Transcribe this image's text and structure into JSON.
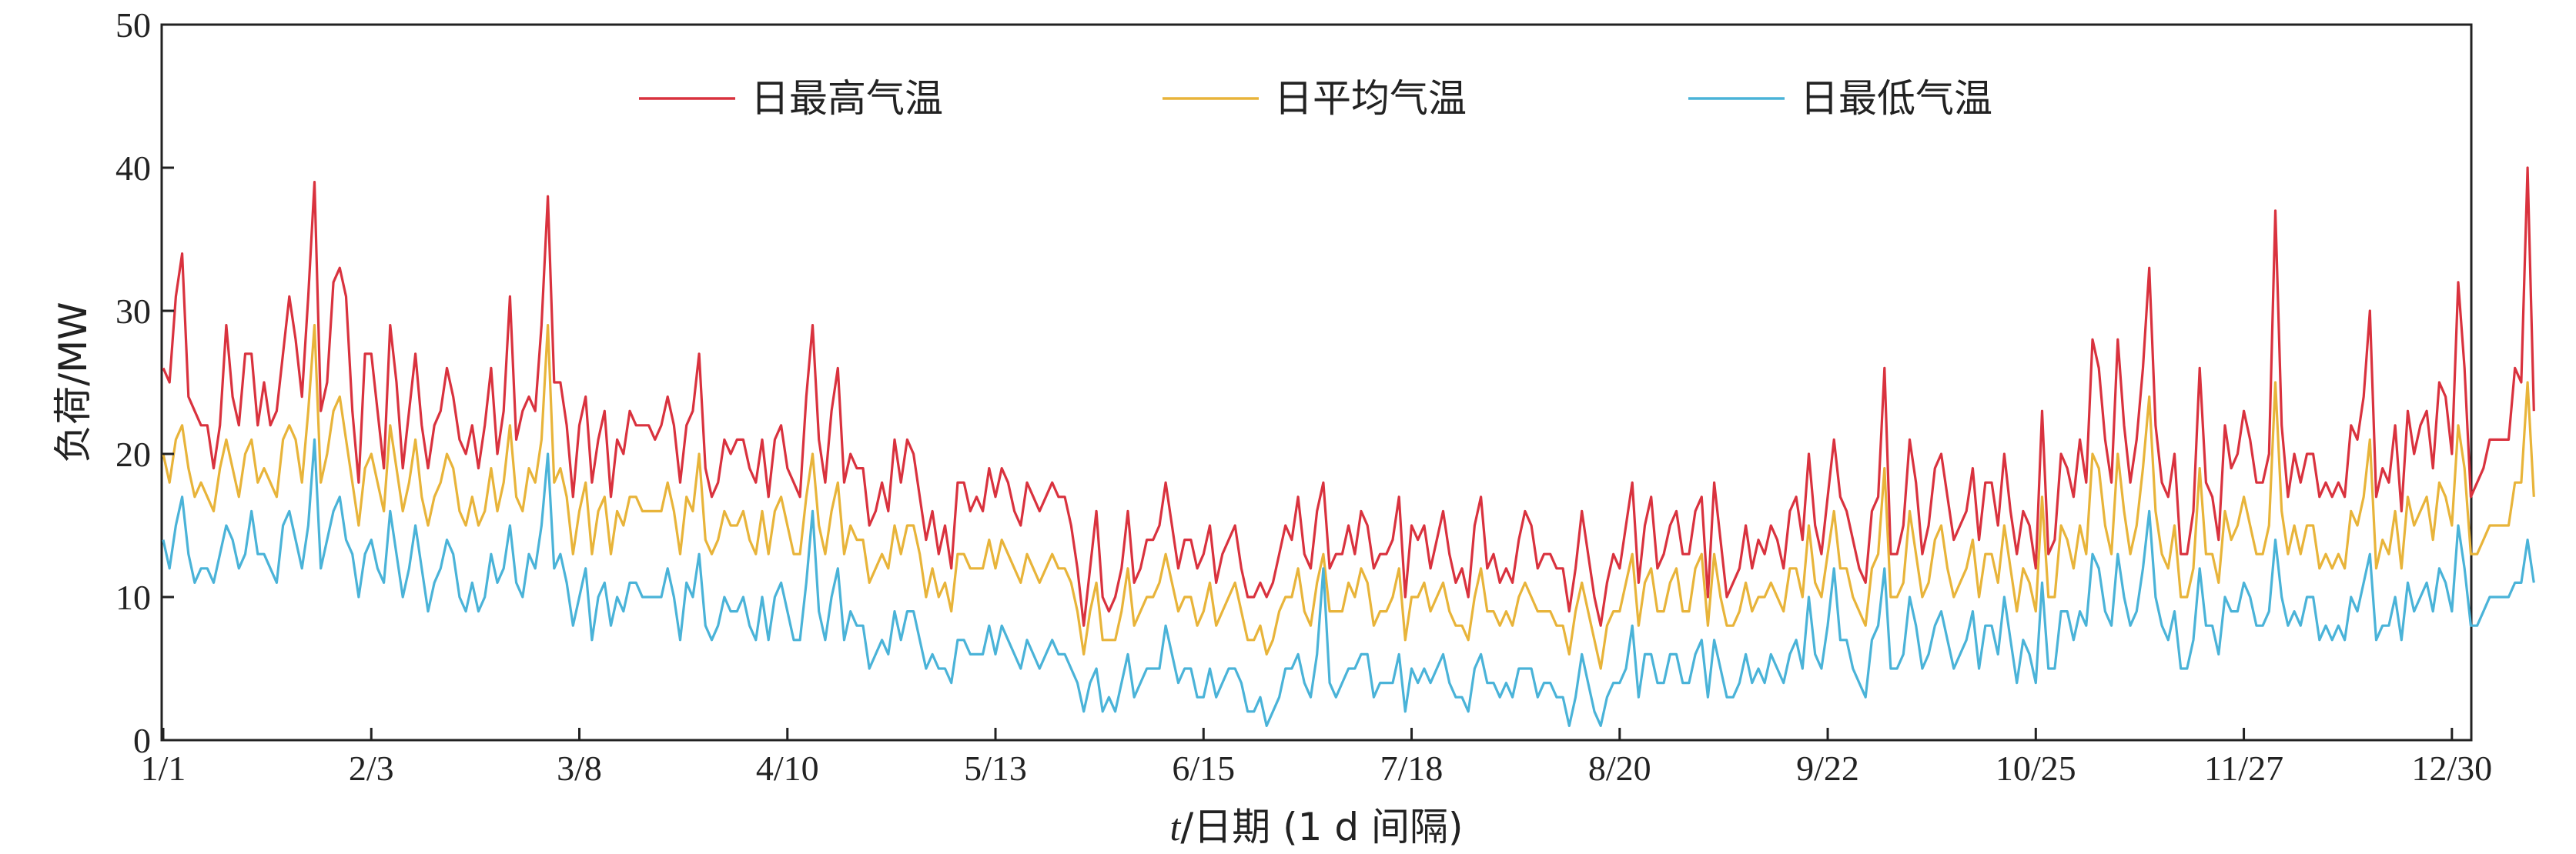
{
  "chart_data": {
    "type": "line",
    "title": "",
    "xlabel_italic": "t",
    "xlabel_rest": "/日期 (1 d 间隔)",
    "ylabel": "负荷/MW",
    "ylim": [
      0,
      50
    ],
    "yticks": [
      0,
      10,
      20,
      30,
      40,
      50
    ],
    "ytick_labels": [
      "0",
      "10",
      "20",
      "30",
      "40",
      "50"
    ],
    "x_range_days": [
      1,
      365
    ],
    "xticks": [
      {
        "day": 1,
        "label": "1/1"
      },
      {
        "day": 34,
        "label": "2/3"
      },
      {
        "day": 67,
        "label": "3/8"
      },
      {
        "day": 100,
        "label": "4/10"
      },
      {
        "day": 133,
        "label": "5/13"
      },
      {
        "day": 166,
        "label": "6/15"
      },
      {
        "day": 199,
        "label": "7/18"
      },
      {
        "day": 232,
        "label": "8/20"
      },
      {
        "day": 265,
        "label": "9/22"
      },
      {
        "day": 298,
        "label": "10/25"
      },
      {
        "day": 331,
        "label": "11/27"
      },
      {
        "day": 364,
        "label": "12/30"
      }
    ],
    "legend_position": "top-center",
    "grid": false,
    "series": [
      {
        "name": "日最高气温",
        "color": "#d9323e",
        "values": [
          26,
          25,
          31,
          34,
          24,
          23,
          22,
          22,
          19,
          22,
          29,
          24,
          22,
          27,
          27,
          22,
          25,
          22,
          23,
          27,
          31,
          28,
          24,
          31,
          39,
          23,
          25,
          32,
          33,
          31,
          23,
          18,
          27,
          27,
          23,
          19,
          29,
          25,
          19,
          23,
          27,
          22,
          19,
          22,
          23,
          26,
          24,
          21,
          20,
          22,
          19,
          22,
          26,
          20,
          23,
          31,
          21,
          23,
          24,
          23,
          29,
          38,
          25,
          25,
          22,
          17,
          22,
          24,
          18,
          21,
          23,
          17,
          21,
          20,
          23,
          22,
          22,
          22,
          21,
          22,
          24,
          22,
          18,
          22,
          23,
          27,
          19,
          17,
          18,
          21,
          20,
          21,
          21,
          19,
          18,
          21,
          17,
          21,
          22,
          19,
          18,
          17,
          24,
          29,
          21,
          18,
          23,
          26,
          18,
          20,
          19,
          19,
          15,
          16,
          18,
          16,
          21,
          18,
          21,
          20,
          17,
          14,
          16,
          13,
          15,
          12,
          18,
          18,
          16,
          17,
          16,
          19,
          17,
          19,
          18,
          16,
          15,
          18,
          17,
          16,
          17,
          18,
          17,
          17,
          15,
          12,
          8,
          12,
          16,
          10,
          9,
          10,
          12,
          16,
          11,
          12,
          14,
          14,
          15,
          18,
          15,
          12,
          14,
          14,
          12,
          13,
          15,
          11,
          13,
          14,
          15,
          12,
          10,
          10,
          11,
          10,
          11,
          13,
          15,
          14,
          17,
          13,
          12,
          16,
          18,
          12,
          13,
          13,
          15,
          13,
          16,
          15,
          12,
          13,
          13,
          14,
          17,
          10,
          15,
          14,
          15,
          12,
          14,
          16,
          13,
          11,
          12,
          10,
          15,
          17,
          12,
          13,
          11,
          12,
          11,
          14,
          16,
          15,
          12,
          13,
          13,
          12,
          12,
          9,
          12,
          16,
          13,
          10,
          8,
          11,
          13,
          12,
          15,
          18,
          11,
          15,
          17,
          12,
          13,
          15,
          16,
          13,
          13,
          16,
          17,
          10,
          18,
          14,
          10,
          11,
          12,
          15,
          12,
          14,
          13,
          15,
          14,
          12,
          16,
          17,
          14,
          20,
          15,
          13,
          17,
          21,
          17,
          16,
          14,
          12,
          11,
          16,
          17,
          26,
          13,
          13,
          15,
          21,
          18,
          13,
          15,
          19,
          20,
          17,
          14,
          15,
          16,
          19,
          14,
          18,
          18,
          15,
          20,
          16,
          13,
          16,
          15,
          12,
          23,
          13,
          14,
          20,
          19,
          17,
          21,
          18,
          28,
          26,
          21,
          18,
          28,
          22,
          18,
          21,
          26,
          33,
          22,
          18,
          17,
          20,
          13,
          13,
          16,
          26,
          18,
          17,
          14,
          22,
          19,
          20,
          23,
          21,
          18,
          18,
          20,
          37,
          22,
          17,
          20,
          18,
          20,
          20,
          17,
          18,
          17,
          18,
          17,
          22,
          21,
          24,
          30,
          17,
          19,
          18,
          22,
          16,
          23,
          20,
          22,
          23,
          19,
          25,
          24,
          20,
          32,
          26,
          17,
          18,
          19,
          21,
          21,
          21,
          21,
          26,
          25,
          40,
          23
        ]
      },
      {
        "name": "日平均气温",
        "color": "#e8b43a",
        "values": [
          20,
          18,
          21,
          22,
          19,
          17,
          18,
          17,
          16,
          19,
          21,
          19,
          17,
          20,
          21,
          18,
          19,
          18,
          17,
          21,
          22,
          21,
          18,
          23,
          29,
          18,
          20,
          23,
          24,
          21,
          18,
          15,
          19,
          20,
          18,
          16,
          22,
          19,
          16,
          18,
          21,
          17,
          15,
          17,
          18,
          20,
          19,
          16,
          15,
          17,
          15,
          16,
          19,
          16,
          18,
          22,
          17,
          16,
          19,
          18,
          21,
          29,
          18,
          19,
          17,
          13,
          16,
          18,
          13,
          16,
          17,
          13,
          16,
          15,
          17,
          17,
          16,
          16,
          16,
          16,
          18,
          16,
          13,
          17,
          16,
          20,
          14,
          13,
          14,
          16,
          15,
          15,
          16,
          14,
          13,
          16,
          13,
          16,
          17,
          15,
          13,
          13,
          17,
          20,
          15,
          13,
          16,
          18,
          13,
          15,
          14,
          14,
          11,
          12,
          13,
          12,
          15,
          13,
          15,
          15,
          13,
          10,
          12,
          10,
          11,
          9,
          13,
          13,
          12,
          12,
          12,
          14,
          12,
          14,
          13,
          12,
          11,
          13,
          12,
          11,
          12,
          13,
          12,
          12,
          11,
          9,
          6,
          9,
          11,
          7,
          7,
          7,
          9,
          12,
          8,
          9,
          10,
          10,
          11,
          13,
          11,
          9,
          10,
          10,
          8,
          9,
          11,
          8,
          9,
          10,
          11,
          9,
          7,
          7,
          8,
          6,
          7,
          9,
          10,
          10,
          12,
          9,
          8,
          11,
          13,
          9,
          9,
          9,
          11,
          10,
          12,
          11,
          8,
          9,
          9,
          10,
          12,
          7,
          10,
          10,
          11,
          9,
          10,
          11,
          9,
          8,
          8,
          7,
          10,
          12,
          9,
          9,
          8,
          9,
          8,
          10,
          11,
          10,
          9,
          9,
          9,
          8,
          8,
          6,
          9,
          11,
          9,
          7,
          5,
          8,
          9,
          9,
          11,
          13,
          8,
          11,
          12,
          9,
          9,
          11,
          12,
          9,
          9,
          12,
          13,
          8,
          13,
          10,
          8,
          8,
          9,
          11,
          9,
          10,
          10,
          11,
          10,
          9,
          12,
          12,
          10,
          15,
          11,
          10,
          13,
          16,
          12,
          12,
          10,
          9,
          8,
          12,
          13,
          19,
          10,
          10,
          11,
          16,
          13,
          10,
          11,
          14,
          15,
          12,
          10,
          11,
          12,
          14,
          10,
          13,
          13,
          11,
          15,
          12,
          9,
          12,
          11,
          9,
          17,
          10,
          10,
          15,
          14,
          12,
          15,
          13,
          20,
          19,
          15,
          13,
          20,
          16,
          13,
          15,
          19,
          24,
          16,
          13,
          12,
          15,
          10,
          10,
          12,
          19,
          13,
          13,
          11,
          16,
          14,
          15,
          17,
          15,
          13,
          13,
          15,
          25,
          16,
          13,
          15,
          13,
          15,
          15,
          12,
          13,
          12,
          13,
          12,
          16,
          15,
          17,
          21,
          12,
          14,
          13,
          16,
          12,
          17,
          15,
          16,
          17,
          14,
          18,
          17,
          15,
          22,
          19,
          13,
          13,
          14,
          15,
          15,
          15,
          15,
          18,
          18,
          25,
          17
        ]
      },
      {
        "name": "日最低气温",
        "color": "#4ab3d8",
        "values": [
          14,
          12,
          15,
          17,
          13,
          11,
          12,
          12,
          11,
          13,
          15,
          14,
          12,
          13,
          16,
          13,
          13,
          12,
          11,
          15,
          16,
          14,
          12,
          15,
          21,
          12,
          14,
          16,
          17,
          14,
          13,
          10,
          13,
          14,
          12,
          11,
          16,
          13,
          10,
          12,
          15,
          12,
          9,
          11,
          12,
          14,
          13,
          10,
          9,
          11,
          9,
          10,
          13,
          11,
          12,
          15,
          11,
          10,
          13,
          12,
          15,
          20,
          12,
          13,
          11,
          8,
          10,
          12,
          7,
          10,
          11,
          8,
          10,
          9,
          11,
          11,
          10,
          10,
          10,
          10,
          12,
          10,
          7,
          11,
          10,
          13,
          8,
          7,
          8,
          10,
          9,
          9,
          10,
          8,
          7,
          10,
          7,
          10,
          11,
          9,
          7,
          7,
          11,
          16,
          9,
          7,
          10,
          12,
          7,
          9,
          8,
          8,
          5,
          6,
          7,
          6,
          9,
          7,
          9,
          9,
          7,
          5,
          6,
          5,
          5,
          4,
          7,
          7,
          6,
          6,
          6,
          8,
          6,
          8,
          7,
          6,
          5,
          7,
          6,
          5,
          6,
          7,
          6,
          6,
          5,
          4,
          2,
          4,
          5,
          2,
          3,
          2,
          4,
          6,
          3,
          4,
          5,
          5,
          5,
          8,
          6,
          4,
          5,
          5,
          3,
          3,
          5,
          3,
          4,
          5,
          5,
          4,
          2,
          2,
          3,
          1,
          2,
          3,
          5,
          5,
          6,
          4,
          3,
          6,
          12,
          4,
          3,
          4,
          5,
          5,
          6,
          6,
          3,
          4,
          4,
          4,
          6,
          2,
          5,
          4,
          5,
          4,
          5,
          6,
          4,
          3,
          3,
          2,
          5,
          6,
          4,
          4,
          3,
          4,
          3,
          5,
          5,
          5,
          3,
          4,
          4,
          3,
          3,
          1,
          3,
          6,
          4,
          2,
          1,
          3,
          4,
          4,
          5,
          8,
          3,
          6,
          6,
          4,
          4,
          6,
          6,
          4,
          4,
          6,
          7,
          3,
          7,
          5,
          3,
          3,
          4,
          6,
          4,
          5,
          4,
          6,
          5,
          4,
          6,
          7,
          5,
          10,
          6,
          5,
          8,
          12,
          7,
          7,
          5,
          4,
          3,
          7,
          8,
          12,
          5,
          5,
          6,
          10,
          8,
          5,
          6,
          8,
          9,
          7,
          5,
          6,
          7,
          9,
          5,
          8,
          8,
          6,
          10,
          7,
          4,
          7,
          6,
          4,
          11,
          5,
          5,
          9,
          9,
          7,
          9,
          8,
          13,
          12,
          9,
          8,
          13,
          10,
          8,
          9,
          12,
          16,
          10,
          8,
          7,
          9,
          5,
          5,
          7,
          12,
          8,
          8,
          6,
          10,
          9,
          9,
          11,
          10,
          8,
          8,
          9,
          14,
          10,
          8,
          9,
          8,
          10,
          10,
          7,
          8,
          7,
          8,
          7,
          10,
          9,
          11,
          13,
          7,
          8,
          8,
          10,
          7,
          11,
          9,
          10,
          11,
          9,
          12,
          11,
          9,
          15,
          12,
          8,
          8,
          9,
          10,
          10,
          10,
          10,
          11,
          11,
          14,
          11
        ]
      }
    ]
  }
}
